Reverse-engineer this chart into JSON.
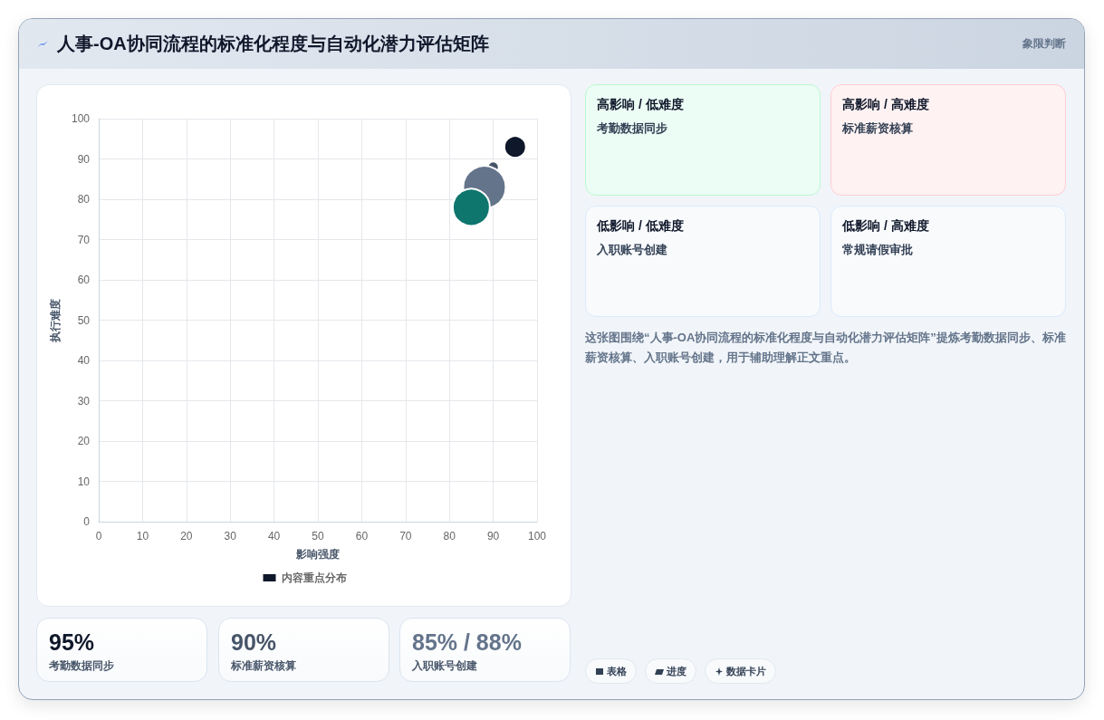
{
  "chart_data": {
    "type": "bubble",
    "title": "人事-OA协同流程的标准化程度与自动化潜力评估矩阵",
    "subtitle": "象限判断",
    "xlabel": "影响强度",
    "ylabel": "执行难度",
    "series": [
      {
        "name": "内容重点分布",
        "color": "#0f172a",
        "x": [
          95,
          90,
          88,
          85
        ],
        "values": [
          93,
          88,
          83,
          78
        ],
        "sizes": [
          0.26,
          0.07,
          1,
          0.76
        ],
        "colors": [
          "#0f172a",
          "#475569",
          "#64748b",
          "#0f766e"
        ]
      }
    ],
    "xlim": [
      0,
      100
    ],
    "xticks": [
      0,
      10,
      20,
      30,
      40,
      50,
      60,
      70,
      80,
      90,
      100
    ],
    "ylim": [
      0,
      100
    ],
    "yticks": [
      0,
      10,
      20,
      30,
      40,
      50,
      60,
      70,
      80,
      90,
      100
    ],
    "grid": true,
    "legend": "bottom",
    "marker": "circle",
    "annotations": [
      "高影响 / 低难度",
      "考勤数据同步",
      "高影响 / 高难度",
      "标准薪资核算",
      "低影响 / 低难度",
      "入职账号创建",
      "低影响 / 高难度",
      "常规请假审批",
      "这张图围绕“人事-OA协同流程的标准化程度与自动化潜力评估矩阵”提炼考勤数据同步、标准薪资核算、入职账号创建，用于辅助理解正文重点。",
      "95%",
      "考勤数据同步",
      "90%",
      "标准薪资核算",
      "85% / 88%",
      "入职账号创建",
      "表格",
      "进度",
      "数据卡片"
    ]
  }
}
